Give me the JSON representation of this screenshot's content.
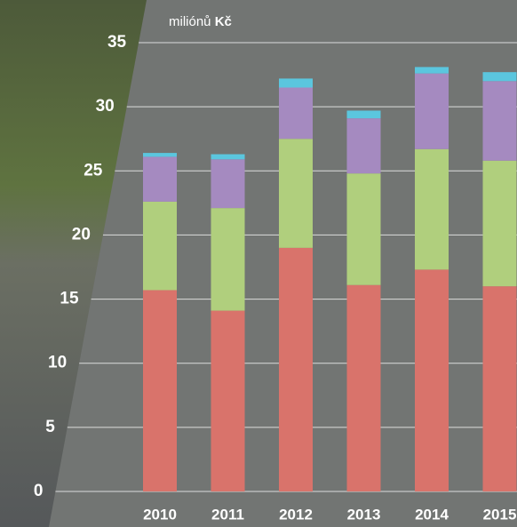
{
  "chart_data": {
    "type": "bar",
    "stacked": true,
    "y_label": "miliónů",
    "y_label_unit": "Kč",
    "categories": [
      "2010",
      "2011",
      "2012",
      "2013",
      "2014",
      "2015"
    ],
    "series": [
      {
        "color": "#d9736b",
        "values": [
          15.7,
          14.1,
          19.0,
          16.1,
          17.3,
          16.0
        ]
      },
      {
        "color": "#b0cf7d",
        "values": [
          6.9,
          8.0,
          8.5,
          8.7,
          9.4,
          9.8
        ]
      },
      {
        "color": "#a58ac0",
        "values": [
          3.5,
          3.8,
          4.0,
          4.3,
          5.9,
          6.2
        ]
      },
      {
        "color": "#5bc6de",
        "values": [
          0.3,
          0.4,
          0.7,
          0.6,
          0.5,
          0.7
        ]
      }
    ],
    "ylim": [
      0,
      35
    ],
    "yticks": [
      0,
      5,
      10,
      15,
      20,
      25,
      30,
      35
    ],
    "grid": true
  }
}
